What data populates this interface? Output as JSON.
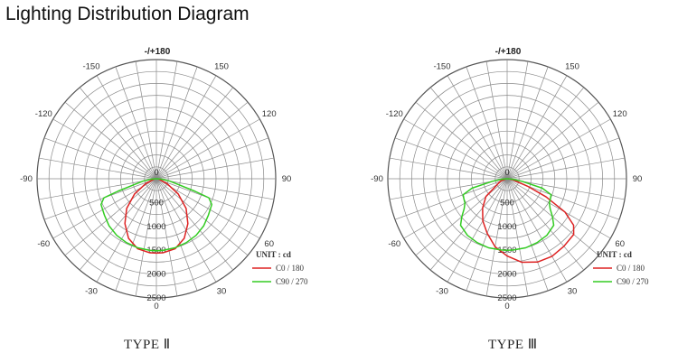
{
  "title": "Lighting Distribution Diagram",
  "chart_data": [
    {
      "type": "polar",
      "caption": "TYPE Ⅱ",
      "angle_labels": {
        "top": "-/+180",
        "left": [
          "-150",
          "-120",
          "-90",
          "-60",
          "-30"
        ],
        "right": [
          "150",
          "120",
          "90",
          "60",
          "30"
        ],
        "bottom": "0"
      },
      "rings": [
        0,
        500,
        1000,
        1500,
        2000,
        2500
      ],
      "ring_labels": [
        "0",
        "500",
        "1000",
        "1500",
        "2000",
        "2500"
      ],
      "rmax": 2500,
      "unit": "UNIT : cd",
      "series": [
        {
          "name": "C0   / 180",
          "color": "#dd2222",
          "angles": [
            -90,
            -75,
            -65,
            -55,
            -45,
            -35,
            -25,
            -15,
            -5,
            0,
            5,
            15,
            25,
            35,
            45,
            55,
            65,
            75,
            90
          ],
          "values": [
            30,
            70,
            250,
            560,
            880,
            1150,
            1380,
            1520,
            1560,
            1560,
            1560,
            1520,
            1380,
            1150,
            880,
            560,
            250,
            70,
            30
          ]
        },
        {
          "name": "C90  / 270",
          "color": "#33cc22",
          "angles": [
            -90,
            -85,
            -80,
            -75,
            -72,
            -70,
            -65,
            -55,
            -45,
            -35,
            -25,
            -15,
            -5,
            0,
            5,
            15,
            25,
            35,
            45,
            55,
            65,
            70,
            72,
            75,
            80,
            85,
            90
          ],
          "values": [
            0,
            110,
            280,
            490,
            850,
            1170,
            1280,
            1330,
            1400,
            1450,
            1480,
            1500,
            1510,
            1510,
            1510,
            1500,
            1480,
            1450,
            1400,
            1330,
            1280,
            1170,
            850,
            490,
            280,
            110,
            0
          ]
        }
      ]
    },
    {
      "type": "polar",
      "caption": "TYPE  Ⅲ",
      "angle_labels": {
        "top": "-/+180",
        "left": [
          "-150",
          "-120",
          "-90",
          "-60",
          "-30"
        ],
        "right": [
          "150",
          "120",
          "90",
          "60",
          "30"
        ],
        "bottom": "0"
      },
      "rings": [
        0,
        500,
        1000,
        1500,
        2000,
        2500
      ],
      "ring_labels": [
        "0",
        "500",
        "1000",
        "1500",
        "2000",
        "2500"
      ],
      "rmax": 2500,
      "unit": "UNIT : cd",
      "series": [
        {
          "name": "C0   / 180",
          "color": "#dd2222",
          "angles": [
            -90,
            -70,
            -50,
            -40,
            -30,
            -20,
            -10,
            0,
            10,
            20,
            30,
            40,
            50,
            55,
            60,
            65,
            70,
            80,
            90
          ],
          "values": [
            20,
            150,
            580,
            800,
            1020,
            1220,
            1450,
            1620,
            1780,
            1860,
            1880,
            1850,
            1820,
            1700,
            1400,
            900,
            450,
            120,
            20
          ]
        },
        {
          "name": "C90  / 270",
          "color": "#33cc22",
          "angles": [
            -90,
            -85,
            -80,
            -75,
            -70,
            -65,
            -60,
            -55,
            -50,
            -45,
            -35,
            -25,
            -15,
            -5,
            0,
            5,
            15,
            25,
            35,
            45,
            50,
            55,
            60,
            65,
            70,
            75,
            80,
            85,
            90
          ],
          "values": [
            0,
            130,
            320,
            760,
            980,
            1000,
            1020,
            1100,
            1240,
            1380,
            1450,
            1480,
            1500,
            1500,
            1500,
            1500,
            1500,
            1480,
            1450,
            1380,
            1240,
            1100,
            1020,
            1000,
            980,
            760,
            320,
            130,
            0
          ]
        }
      ]
    }
  ]
}
